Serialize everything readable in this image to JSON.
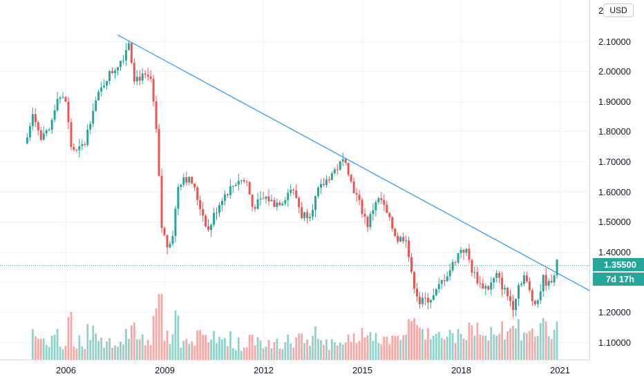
{
  "header": {
    "currency": "USD"
  },
  "price_axis": {
    "last_price_label": "1.35500",
    "countdown_label": "7d 17h",
    "top_partial_label": "2"
  },
  "colors": {
    "up": "#26a69a",
    "down": "#ef5350",
    "up_volume": "#8fd2c9",
    "down_volume": "#f7a7a4",
    "trendline": "#2196f3",
    "grid": "#f0f3fa",
    "last_price_line": "#26a69a"
  },
  "chart_data": {
    "type": "candlestick",
    "interval": "monthly",
    "y_ticks": [
      "1.10000",
      "1.20000",
      "1.30000",
      "1.40000",
      "1.50000",
      "1.60000",
      "1.70000",
      "1.80000",
      "1.90000",
      "2.00000",
      "2.10000"
    ],
    "ylim": [
      1.05,
      2.2
    ],
    "x_ticks": [
      "2006",
      "2009",
      "2012",
      "2015",
      "2018",
      "2021"
    ],
    "last_price": 1.355,
    "trendline": {
      "start": {
        "date": "2007-08",
        "value": 2.12
      },
      "end": {
        "date": "2021-12",
        "value": 1.27
      }
    },
    "anchors": [
      [
        "2004-11",
        1.78
      ],
      [
        "2005-01",
        1.87
      ],
      [
        "2005-04",
        1.77
      ],
      [
        "2005-07",
        1.8
      ],
      [
        "2005-10",
        1.92
      ],
      [
        "2006-01",
        1.9
      ],
      [
        "2006-03",
        1.75
      ],
      [
        "2006-05",
        1.73
      ],
      [
        "2006-08",
        1.76
      ],
      [
        "2006-11",
        1.88
      ],
      [
        "2007-01",
        1.92
      ],
      [
        "2007-04",
        1.98
      ],
      [
        "2007-07",
        2.01
      ],
      [
        "2007-10",
        2.05
      ],
      [
        "2007-12",
        2.1
      ],
      [
        "2008-02",
        1.98
      ],
      [
        "2008-05",
        1.98
      ],
      [
        "2008-08",
        1.97
      ],
      [
        "2008-10",
        1.8
      ],
      [
        "2008-12",
        1.48
      ],
      [
        "2009-02",
        1.42
      ],
      [
        "2009-04",
        1.46
      ],
      [
        "2009-06",
        1.62
      ],
      [
        "2009-08",
        1.65
      ],
      [
        "2009-11",
        1.63
      ],
      [
        "2010-02",
        1.55
      ],
      [
        "2010-05",
        1.47
      ],
      [
        "2010-07",
        1.52
      ],
      [
        "2010-10",
        1.58
      ],
      [
        "2011-01",
        1.61
      ],
      [
        "2011-04",
        1.64
      ],
      [
        "2011-07",
        1.63
      ],
      [
        "2011-09",
        1.55
      ],
      [
        "2011-11",
        1.56
      ],
      [
        "2012-02",
        1.58
      ],
      [
        "2012-05",
        1.56
      ],
      [
        "2012-08",
        1.57
      ],
      [
        "2012-11",
        1.61
      ],
      [
        "2013-01",
        1.58
      ],
      [
        "2013-03",
        1.52
      ],
      [
        "2013-06",
        1.53
      ],
      [
        "2013-09",
        1.6
      ],
      [
        "2014-01",
        1.65
      ],
      [
        "2014-04",
        1.68
      ],
      [
        "2014-07",
        1.71
      ],
      [
        "2014-09",
        1.63
      ],
      [
        "2014-12",
        1.56
      ],
      [
        "2015-03",
        1.49
      ],
      [
        "2015-06",
        1.57
      ],
      [
        "2015-08",
        1.57
      ],
      [
        "2015-11",
        1.5
      ],
      [
        "2016-02",
        1.44
      ],
      [
        "2016-05",
        1.45
      ],
      [
        "2016-07",
        1.32
      ],
      [
        "2016-10",
        1.23
      ],
      [
        "2016-12",
        1.24
      ],
      [
        "2017-03",
        1.25
      ],
      [
        "2017-06",
        1.3
      ],
      [
        "2017-09",
        1.34
      ],
      [
        "2018-01",
        1.41
      ],
      [
        "2018-03",
        1.4
      ],
      [
        "2018-05",
        1.34
      ],
      [
        "2018-08",
        1.29
      ],
      [
        "2018-11",
        1.28
      ],
      [
        "2019-02",
        1.32
      ],
      [
        "2019-05",
        1.27
      ],
      [
        "2019-08",
        1.22
      ],
      [
        "2019-10",
        1.29
      ],
      [
        "2019-12",
        1.32
      ],
      [
        "2020-03",
        1.24
      ],
      [
        "2020-05",
        1.24
      ],
      [
        "2020-07",
        1.31
      ],
      [
        "2020-09",
        1.29
      ],
      [
        "2020-11",
        1.33
      ],
      [
        "2020-12",
        1.36
      ]
    ]
  }
}
